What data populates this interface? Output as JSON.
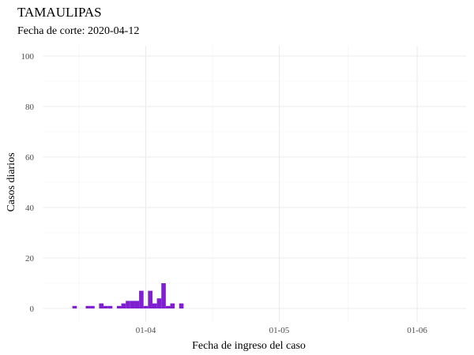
{
  "chart_data": {
    "type": "bar",
    "title": "TAMAULIPAS",
    "subtitle": "Fecha de corte: 2020-04-12",
    "xlabel": "Fecha de ingreso del caso",
    "ylabel": "Casos diarios",
    "ylim": [
      0,
      100
    ],
    "y_ticks": [
      0,
      20,
      40,
      60,
      80,
      100
    ],
    "xlim": [
      "2020-03-09",
      "2020-06-12"
    ],
    "x_ticks": [
      {
        "date": "2020-04-01",
        "label": "01-04"
      },
      {
        "date": "2020-05-01",
        "label": "01-05"
      },
      {
        "date": "2020-06-01",
        "label": "01-06"
      }
    ],
    "grid": true,
    "legend": "none",
    "bar_color": "#7f1fd1",
    "data": [
      {
        "x": "2020-03-16",
        "y": 1
      },
      {
        "x": "2020-03-19",
        "y": 1
      },
      {
        "x": "2020-03-20",
        "y": 1
      },
      {
        "x": "2020-03-22",
        "y": 2
      },
      {
        "x": "2020-03-23",
        "y": 1
      },
      {
        "x": "2020-03-24",
        "y": 1
      },
      {
        "x": "2020-03-26",
        "y": 1
      },
      {
        "x": "2020-03-27",
        "y": 2
      },
      {
        "x": "2020-03-28",
        "y": 3
      },
      {
        "x": "2020-03-29",
        "y": 3
      },
      {
        "x": "2020-03-30",
        "y": 3
      },
      {
        "x": "2020-03-31",
        "y": 7
      },
      {
        "x": "2020-04-01",
        "y": 1
      },
      {
        "x": "2020-04-02",
        "y": 7
      },
      {
        "x": "2020-04-03",
        "y": 2
      },
      {
        "x": "2020-04-04",
        "y": 4
      },
      {
        "x": "2020-04-05",
        "y": 10
      },
      {
        "x": "2020-04-06",
        "y": 1
      },
      {
        "x": "2020-04-07",
        "y": 2
      },
      {
        "x": "2020-04-09",
        "y": 2
      }
    ]
  }
}
